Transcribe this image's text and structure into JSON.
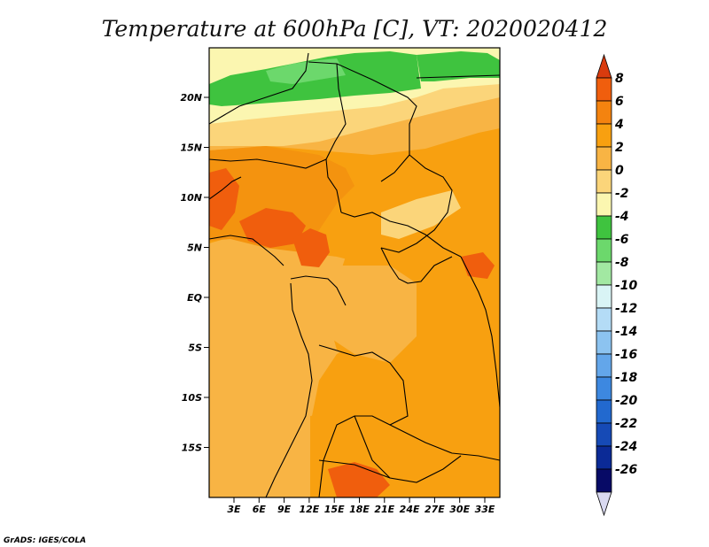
{
  "title": "Temperature at 600hPa [C], VT: 2020020412",
  "footer": "GrADS: IGES/COLA",
  "map": {
    "lat_labels": [
      "20N",
      "15N",
      "10N",
      "5N",
      "EQ",
      "5S",
      "10S",
      "15S"
    ],
    "lon_labels": [
      "3E",
      "6E",
      "9E",
      "12E",
      "15E",
      "18E",
      "21E",
      "24E",
      "27E",
      "30E",
      "33E"
    ]
  },
  "legend": {
    "labels": [
      "8",
      "6",
      "4",
      "2",
      "0",
      "-2",
      "-4",
      "-6",
      "-8",
      "-10",
      "-12",
      "-14",
      "-16",
      "-18",
      "-20",
      "-22",
      "-24",
      "-26"
    ],
    "colors": [
      "#d93b0e",
      "#f05e0d",
      "#f4830f",
      "#f8a010",
      "#f8b444",
      "#fbd57a",
      "#fbf6b0",
      "#3fc33f",
      "#6cd86c",
      "#a2e8a2",
      "#d9f4f5",
      "#b4dcf6",
      "#8cc3f0",
      "#63a6ea",
      "#3d88e0",
      "#2269cf",
      "#164ab6",
      "#0b2a96",
      "#070a66",
      "#d9d9f0"
    ]
  }
}
